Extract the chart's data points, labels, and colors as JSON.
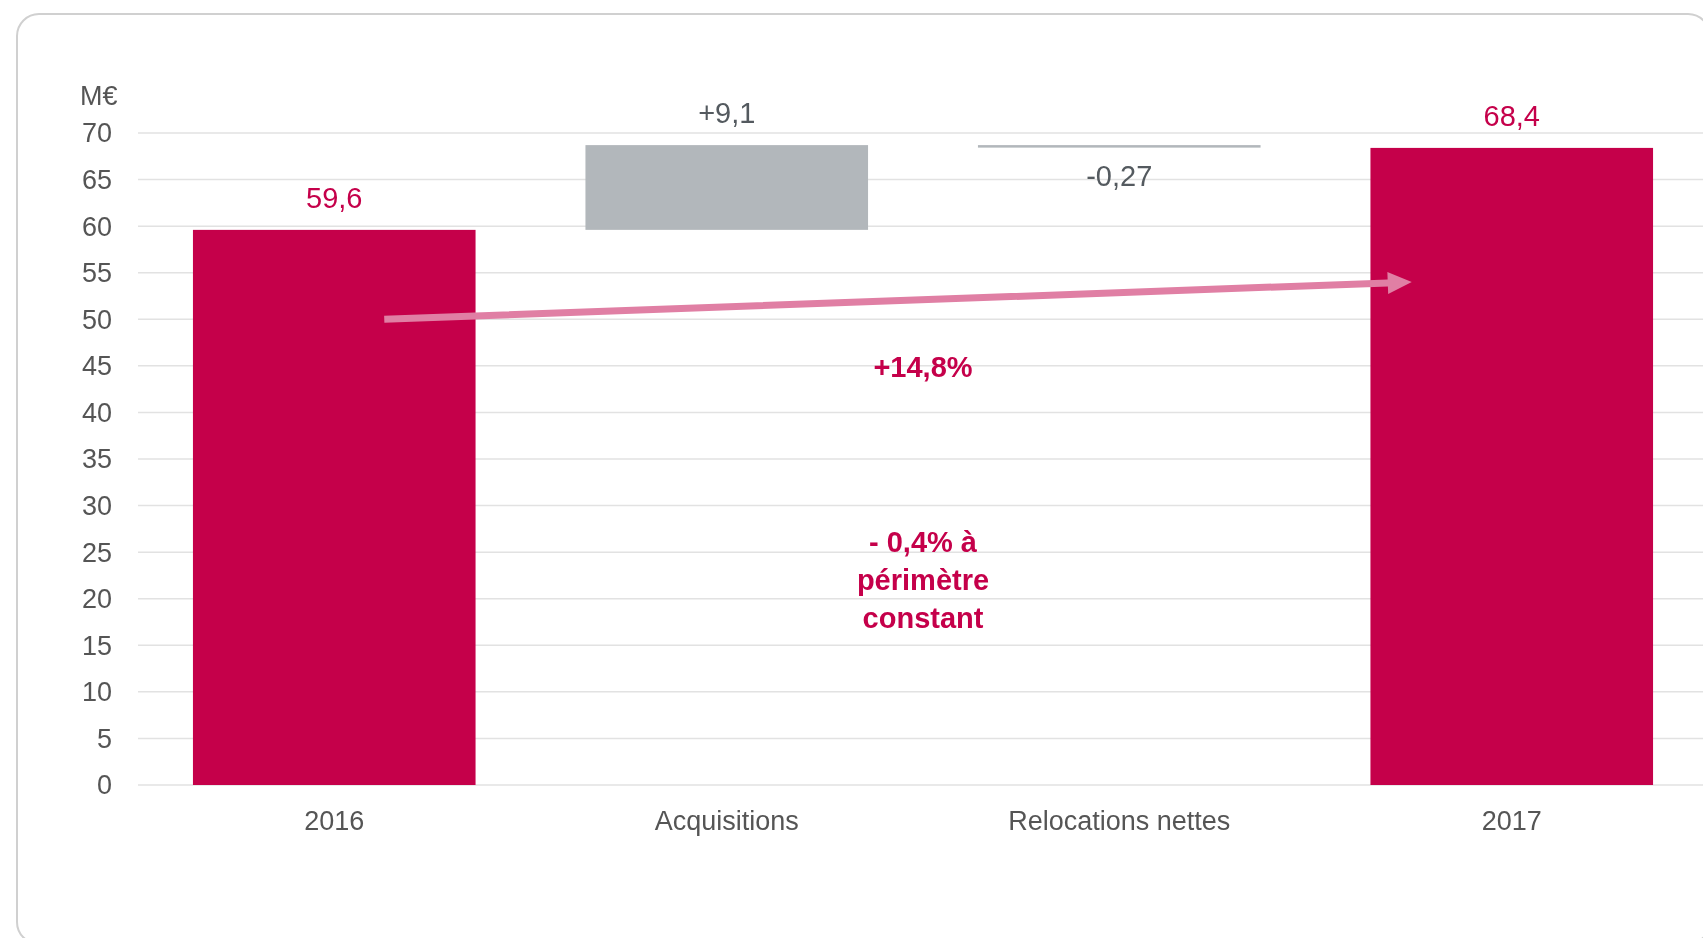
{
  "chart_data": {
    "type": "bar",
    "ylabel": "M€",
    "categories": [
      "2016",
      "Acquisitions",
      "Relocations nettes",
      "2017"
    ],
    "values": [
      59.6,
      9.1,
      -0.27,
      68.4
    ],
    "base": [
      0,
      59.6,
      68.7,
      0
    ],
    "colors": [
      "#c5004a",
      "#b2b7bb",
      "#b2b7bb",
      "#c5004a"
    ],
    "value_labels": [
      "59,6",
      "+9,1",
      "-0,27",
      "68,4"
    ],
    "ylim": [
      0,
      70
    ],
    "yticks": [
      0,
      5,
      10,
      15,
      20,
      25,
      30,
      35,
      40,
      45,
      50,
      55,
      60,
      65,
      70
    ],
    "grid": "y",
    "annotations": [
      "+14,8%",
      "- 0,4% à périmètre constant"
    ]
  }
}
